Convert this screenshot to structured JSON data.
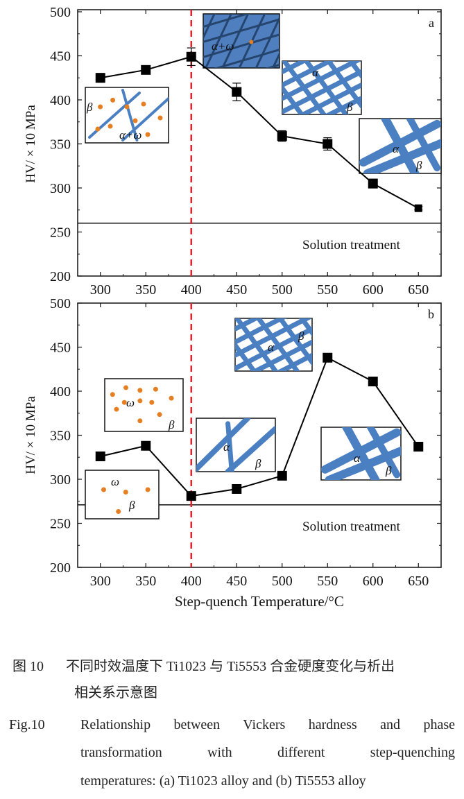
{
  "chart_data": [
    {
      "type": "line",
      "panel_label": "a",
      "ylabel": "HV/ × 10 MPa",
      "xlabel": "",
      "xlim": [
        275,
        675
      ],
      "ylim": [
        200,
        500
      ],
      "x_ticks": [
        300,
        350,
        400,
        450,
        500,
        550,
        600,
        650
      ],
      "y_ticks": [
        200,
        250,
        300,
        350,
        400,
        450,
        500
      ],
      "x": [
        300,
        350,
        400,
        450,
        500,
        550,
        600,
        650
      ],
      "y": [
        425,
        434,
        449,
        409,
        359,
        350,
        305,
        277
      ],
      "error": [
        5,
        3,
        10,
        10,
        6,
        7,
        5,
        2
      ],
      "reference_line": {
        "value": 260,
        "label": "Solution treatment"
      },
      "vertical_dashed_line": 400,
      "insets": [
        {
          "labels": [
            "β",
            "α+ω"
          ]
        },
        {
          "labels": [
            "α+ω"
          ]
        },
        {
          "labels": [
            "α",
            "β"
          ]
        },
        {
          "labels": [
            "α",
            "β"
          ]
        }
      ]
    },
    {
      "type": "line",
      "panel_label": "b",
      "ylabel": "HV/ × 10 MPa",
      "xlabel": "Step-quench Temperature/°C",
      "xlim": [
        275,
        675
      ],
      "ylim": [
        200,
        500
      ],
      "x_ticks": [
        300,
        350,
        400,
        450,
        500,
        550,
        600,
        650
      ],
      "y_ticks": [
        200,
        250,
        300,
        350,
        400,
        450,
        500
      ],
      "x": [
        300,
        350,
        400,
        450,
        500,
        550,
        600,
        650
      ],
      "y": [
        326,
        338,
        281,
        289,
        304,
        438,
        411,
        337
      ],
      "reference_line": {
        "value": 271,
        "label": "Solution treatment"
      },
      "vertical_dashed_line": 400,
      "insets": [
        {
          "labels": [
            "ω",
            "β"
          ]
        },
        {
          "labels": [
            "ω",
            "β"
          ]
        },
        {
          "labels": [
            "α",
            "β"
          ]
        },
        {
          "labels": [
            "α",
            "β"
          ]
        },
        {
          "labels": [
            "α",
            "β"
          ]
        }
      ]
    }
  ],
  "colors": {
    "marker": "#000000",
    "dashed_line": "#e8202a",
    "lath": "#4a7fc1",
    "dot": "#e67e22"
  },
  "caption": {
    "cn_label": "图 10",
    "cn_line1": "不同时效温度下 Ti1023 与 Ti5553 合金硬度变化与析出",
    "cn_line2": "相关系示意图",
    "en_label": "Fig.10",
    "en_line1": "Relationship between Vickers hardness and phase",
    "en_line2": "transformation with different step-quenching",
    "en_line3": "temperatures: (a) Ti1023 alloy and (b) Ti5553 alloy"
  }
}
